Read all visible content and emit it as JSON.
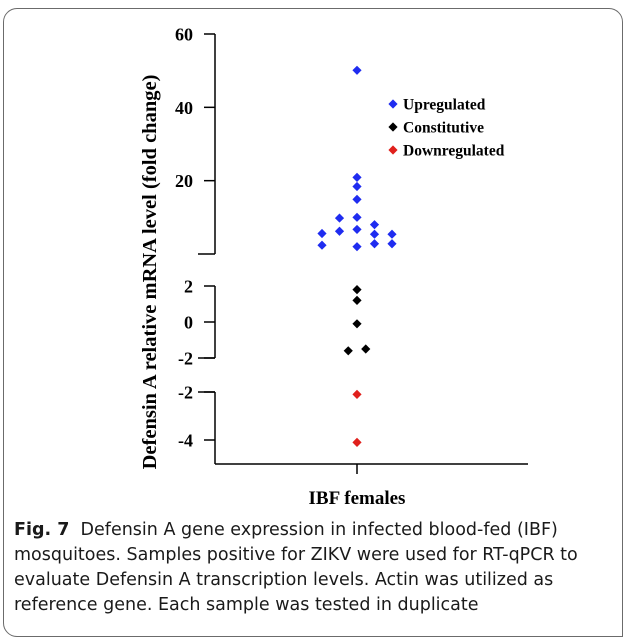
{
  "chart_data": {
    "type": "scatter",
    "ylabel": "Defensin A relative mRNA level (fold change)",
    "xlabel": "IBF females",
    "categories": [
      "IBF females"
    ],
    "axis_segments": {
      "upper": {
        "ticks": [
          20,
          40,
          60
        ],
        "ylim": [
          0,
          60
        ]
      },
      "middle": {
        "ticks": [
          -2,
          0,
          2
        ],
        "ylim": [
          -2,
          2
        ]
      },
      "lower": {
        "ticks": [
          -4,
          -2
        ],
        "ylim": [
          -4,
          -2
        ]
      }
    },
    "legend_position": "top-right",
    "series": [
      {
        "name": "Upregulated",
        "color": "#1f2cf0",
        "points": [
          {
            "x": 0,
            "y": 50.1
          },
          {
            "x": 0,
            "y": 20.9
          },
          {
            "x": 0,
            "y": 18.4
          },
          {
            "x": 0,
            "y": 14.9
          },
          {
            "x": 0,
            "y": 10.0
          },
          {
            "x": -0.5,
            "y": 9.8
          },
          {
            "x": 0.5,
            "y": 8.0
          },
          {
            "x": 0,
            "y": 6.7
          },
          {
            "x": -0.5,
            "y": 6.2
          },
          {
            "x": -1,
            "y": 5.6
          },
          {
            "x": 0.5,
            "y": 5.4
          },
          {
            "x": 1,
            "y": 5.4
          },
          {
            "x": -1,
            "y": 2.4
          },
          {
            "x": 0,
            "y": 2.0
          },
          {
            "x": 0.5,
            "y": 2.8
          },
          {
            "x": 1,
            "y": 2.8
          }
        ]
      },
      {
        "name": "Constitutive",
        "color": "#000000",
        "points": [
          {
            "x": 0,
            "y": 1.8
          },
          {
            "x": 0,
            "y": 1.2
          },
          {
            "x": 0,
            "y": -0.1
          },
          {
            "x": -0.25,
            "y": -1.6
          },
          {
            "x": 0.25,
            "y": -1.5
          }
        ]
      },
      {
        "name": "Downregulated",
        "color": "#e0201c",
        "points": [
          {
            "x": 0,
            "y": -2.1
          },
          {
            "x": 0,
            "y": -4.1
          }
        ]
      }
    ]
  },
  "caption": {
    "label": "Fig. 7",
    "text": "Defensin A gene expression in infected blood-fed (IBF) mosquitoes. Samples positive for ZIKV were used for RT-qPCR to evaluate Defensin A transcription levels. Actin was utilized as reference gene. Each sample was tested in duplicate"
  }
}
